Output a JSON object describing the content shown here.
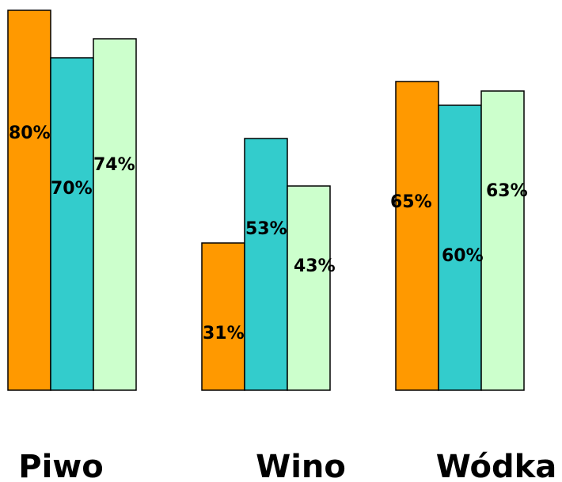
{
  "chart_data": {
    "type": "bar",
    "categories": [
      "Piwo",
      "Wino",
      "Wódka"
    ],
    "series": [
      {
        "values": [
          80,
          31,
          65
        ],
        "labels": [
          "80%",
          "31%",
          "65%"
        ],
        "color": "#FF9900"
      },
      {
        "values": [
          70,
          53,
          60
        ],
        "labels": [
          "70%",
          "53%",
          "60%"
        ],
        "color": "#33CCCC"
      },
      {
        "values": [
          74,
          43,
          63
        ],
        "labels": [
          "74%",
          "43%",
          "63%"
        ],
        "color": "#CCFFCC"
      }
    ],
    "title": "",
    "xlabel": "",
    "ylabel": "",
    "ylim": [
      0,
      80
    ],
    "grid": false,
    "legend": "none",
    "bar_outline_color": "#000000"
  }
}
